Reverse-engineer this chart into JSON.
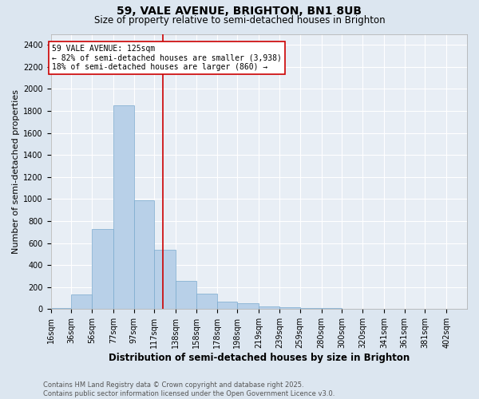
{
  "title_line1": "59, VALE AVENUE, BRIGHTON, BN1 8UB",
  "title_line2": "Size of property relative to semi-detached houses in Brighton",
  "xlabel": "Distribution of semi-detached houses by size in Brighton",
  "ylabel": "Number of semi-detached properties",
  "footnote": "Contains HM Land Registry data © Crown copyright and database right 2025.\nContains public sector information licensed under the Open Government Licence v3.0.",
  "annotation_title": "59 VALE AVENUE: 125sqm",
  "annotation_line1": "← 82% of semi-detached houses are smaller (3,938)",
  "annotation_line2": "18% of semi-detached houses are larger (860) →",
  "property_size": 125,
  "bar_edges": [
    16,
    36,
    56,
    77,
    97,
    117,
    138,
    158,
    178,
    198,
    219,
    239,
    259,
    280,
    300,
    320,
    341,
    361,
    381,
    402,
    422
  ],
  "bar_heights": [
    10,
    130,
    730,
    1850,
    990,
    540,
    255,
    140,
    70,
    55,
    25,
    15,
    10,
    8,
    5,
    3,
    2,
    1,
    1,
    0
  ],
  "bar_color": "#b8d0e8",
  "bar_edge_color": "#7aaace",
  "vline_color": "#cc0000",
  "vline_x": 125,
  "ylim": [
    0,
    2500
  ],
  "yticks": [
    0,
    200,
    400,
    600,
    800,
    1000,
    1200,
    1400,
    1600,
    1800,
    2000,
    2200,
    2400
  ],
  "bg_color": "#dce6f0",
  "plot_bg_color": "#e8eef5",
  "grid_color": "#ffffff",
  "annotation_box_color": "#cc0000",
  "title_fontsize": 10,
  "subtitle_fontsize": 8.5,
  "axis_label_fontsize": 8.5,
  "ylabel_fontsize": 8,
  "tick_fontsize": 7,
  "annotation_fontsize": 7,
  "footnote_fontsize": 6
}
